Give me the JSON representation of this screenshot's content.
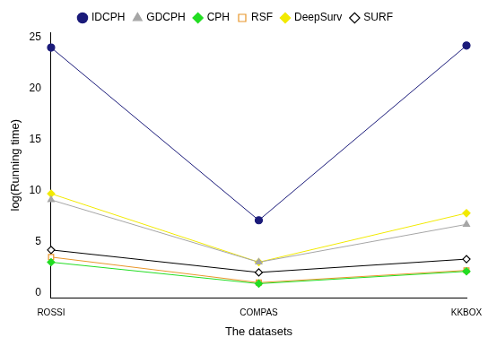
{
  "chart_data": {
    "type": "line",
    "x_label": "The datasets",
    "y_label": "log(Running time)",
    "categories": [
      "ROSSI",
      "COMPAS",
      "KKBOX"
    ],
    "series": [
      {
        "name": "IDCPH",
        "color": "#1b1b7a",
        "marker": "circle",
        "values": [
          24.0,
          7.1,
          24.2
        ]
      },
      {
        "name": "GDCPH",
        "color": "#a6a6a6",
        "marker": "triangle",
        "values": [
          9.1,
          3.0,
          6.7
        ]
      },
      {
        "name": "CPH",
        "color": "#22dd22",
        "marker": "diamond",
        "values": [
          3.0,
          0.9,
          2.1
        ]
      },
      {
        "name": "RSF",
        "color": "#e8962a",
        "marker": "open square",
        "values": [
          3.5,
          1.0,
          2.2
        ]
      },
      {
        "name": "DeepSurv",
        "color": "#f2ea00",
        "marker": "diamond",
        "values": [
          9.7,
          3.0,
          7.8
        ]
      },
      {
        "name": "SURF",
        "color": "#000000",
        "marker": "open diamond",
        "values": [
          4.2,
          2.0,
          3.3
        ]
      }
    ],
    "ylim": [
      -0.5,
      25.5
    ],
    "yticks": [
      0,
      5,
      10,
      15,
      20,
      25
    ],
    "grid": false,
    "legend": "top"
  }
}
